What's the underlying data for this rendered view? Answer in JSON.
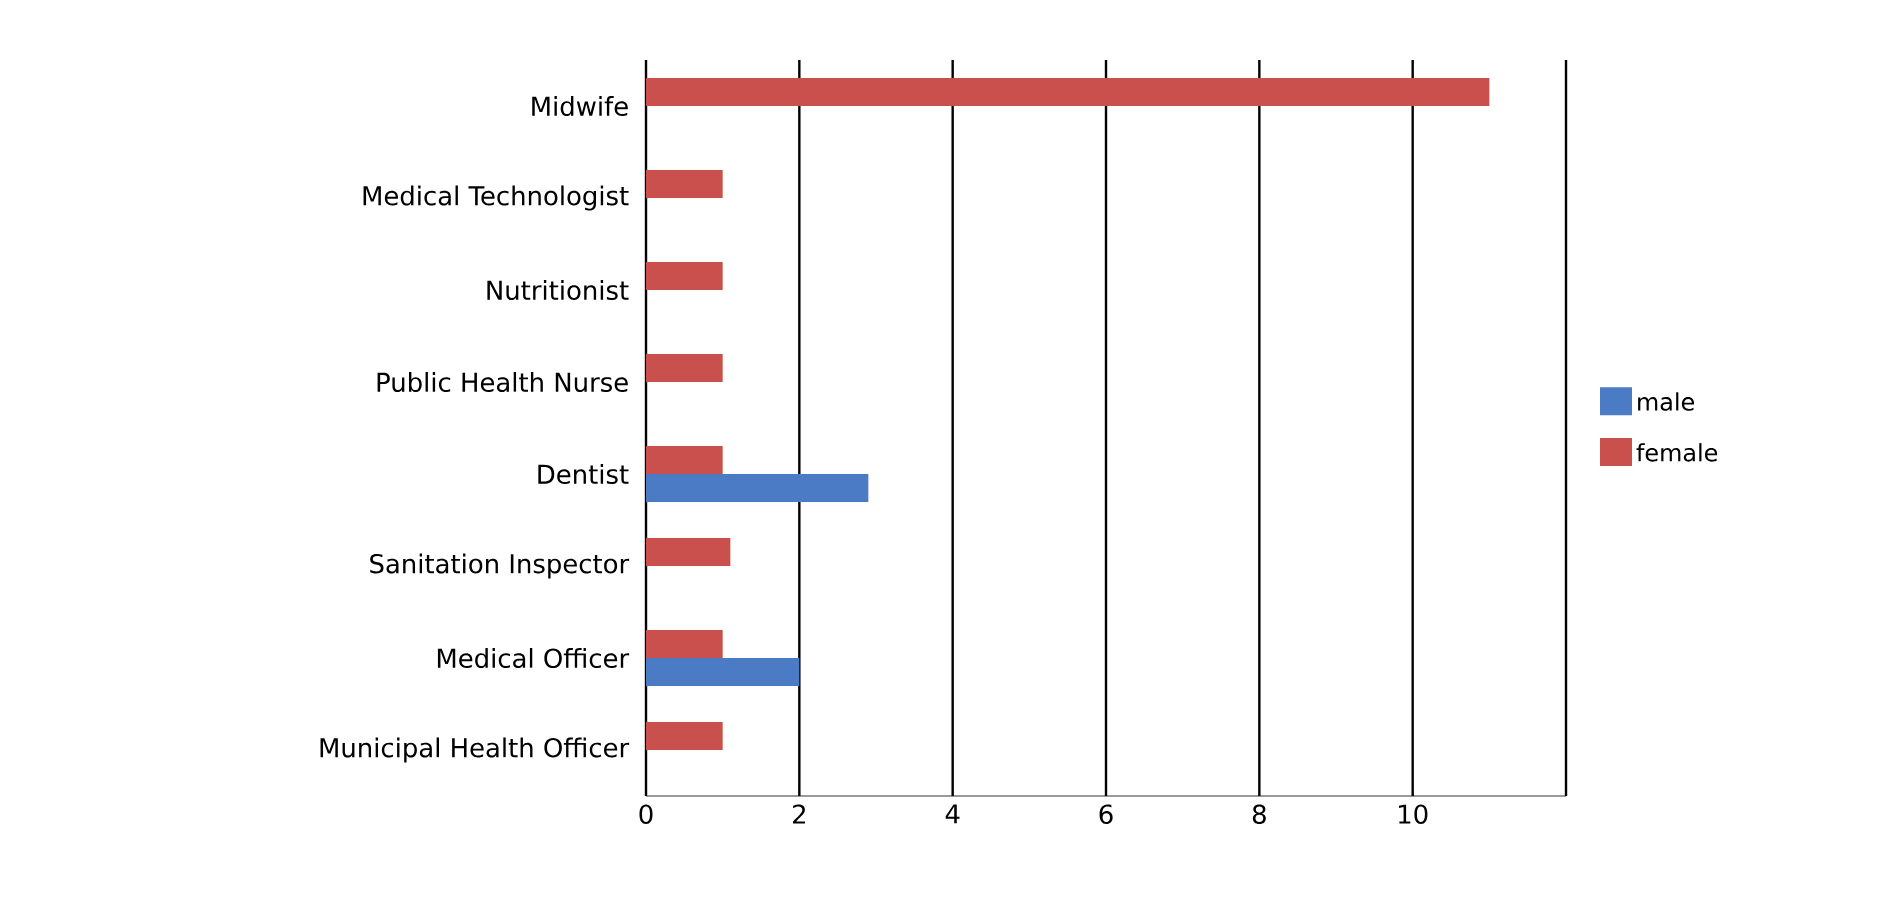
{
  "chart_data": {
    "type": "bar",
    "orientation": "horizontal",
    "categories": [
      "Midwife",
      "Medical Technologist",
      "Nutritionist",
      "Public Health Nurse",
      "Dentist",
      "Sanitation Inspector",
      "Medical Officer",
      "Municipal Health Officer"
    ],
    "series": [
      {
        "name": "male",
        "color": "#4a7bc4",
        "values": [
          null,
          null,
          null,
          null,
          2.9,
          null,
          2,
          null
        ]
      },
      {
        "name": "female",
        "color": "#c9504c",
        "values": [
          11,
          1,
          1,
          1,
          1,
          1.1,
          1,
          1
        ]
      }
    ],
    "xlim": [
      0,
      12
    ],
    "xticks": [
      0,
      2,
      4,
      6,
      8,
      10,
      {
        "value": 12,
        "label": null
      }
    ],
    "grid": "x",
    "legend": "right"
  }
}
